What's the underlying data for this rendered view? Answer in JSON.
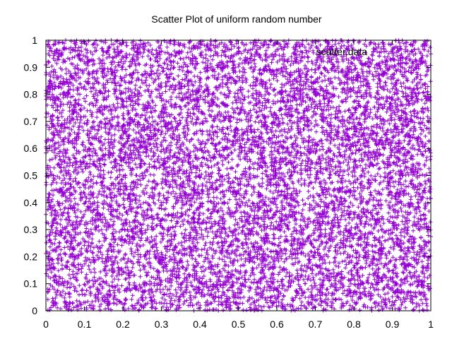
{
  "chart_data": {
    "type": "scatter",
    "title": "Scatter Plot of uniform random number",
    "xlabel": "",
    "ylabel": "",
    "xlim": [
      0,
      1
    ],
    "ylim": [
      0,
      1
    ],
    "xticks": [
      0,
      0.1,
      0.2,
      0.3,
      0.4,
      0.5,
      0.6,
      0.7,
      0.8,
      0.9,
      1
    ],
    "yticks": [
      0,
      0.1,
      0.2,
      0.3,
      0.4,
      0.5,
      0.6,
      0.7,
      0.8,
      0.9,
      1
    ],
    "xtick_labels": [
      "0",
      "0.1",
      "0.2",
      "0.3",
      "0.4",
      "0.5",
      "0.6",
      "0.7",
      "0.8",
      "0.9",
      "1"
    ],
    "ytick_labels": [
      "0",
      "0.1",
      "0.2",
      "0.3",
      "0.4",
      "0.5",
      "0.6",
      "0.7",
      "0.8",
      "0.9",
      "1"
    ],
    "grid": false,
    "legend": {
      "placement": "top-right",
      "entries": [
        {
          "label": "scatter.data",
          "marker": "plus",
          "color": "#9400d3"
        }
      ]
    },
    "series": [
      {
        "name": "scatter.data",
        "marker": "plus",
        "color": "#9400d3",
        "distribution": "uniform",
        "point_count": 10000,
        "x_range": [
          0,
          1
        ],
        "y_range": [
          0,
          1
        ]
      }
    ]
  }
}
